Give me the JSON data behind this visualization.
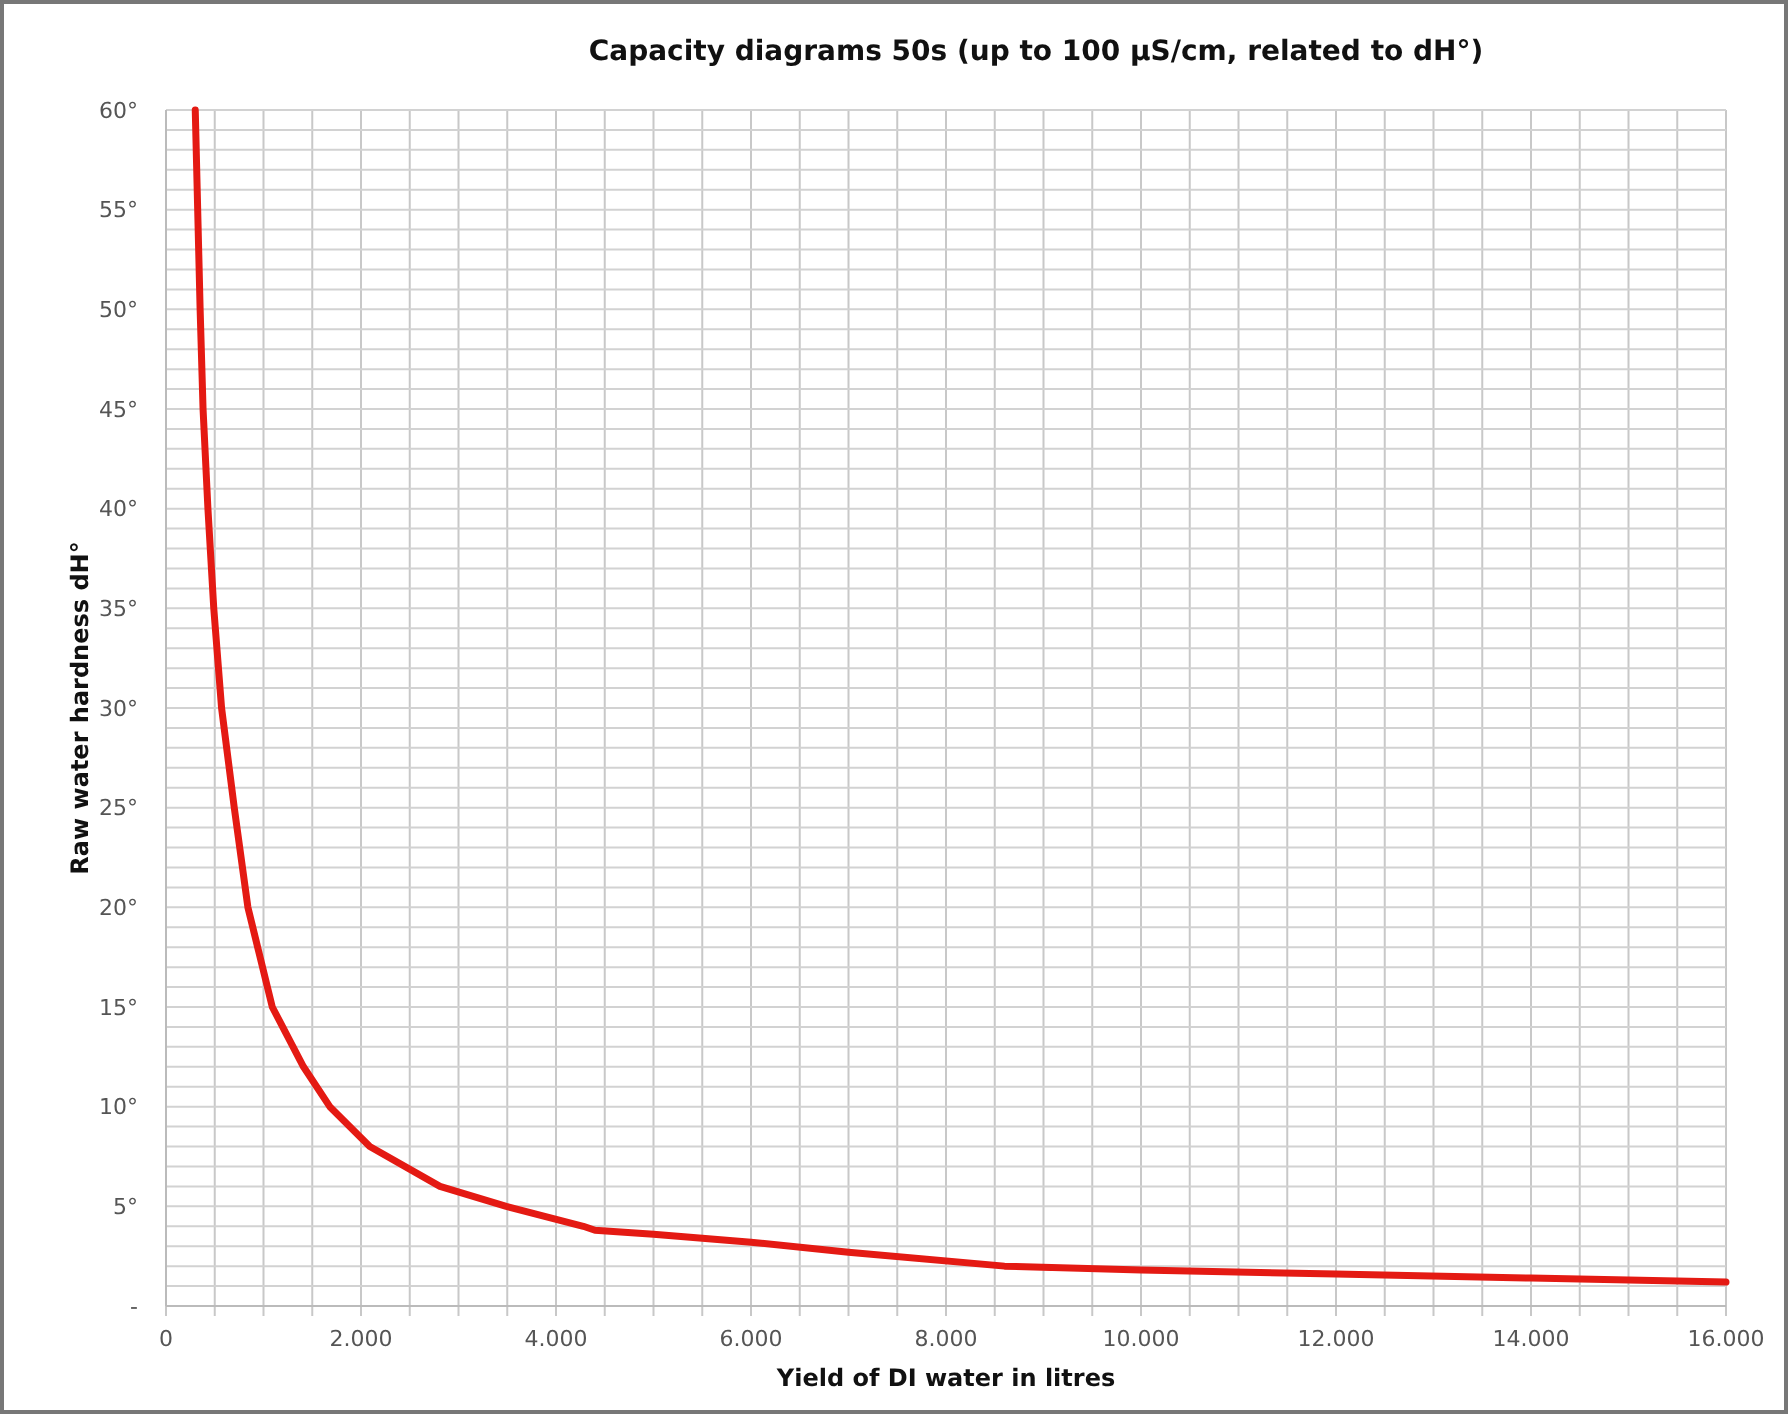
{
  "chart_data": {
    "type": "line",
    "title": "Capacity diagrams 50s (up to 100 µS/cm, related to dH°)",
    "xlabel": "Yield of DI water in litres",
    "ylabel": "Raw water hardness dH°",
    "x": [
      300,
      350,
      380,
      430,
      490,
      570,
      700,
      840,
      1090,
      1410,
      1680,
      2090,
      2810,
      3490,
      4280,
      4400,
      5000,
      6000,
      7000,
      8600,
      10000,
      12000,
      14000,
      16000
    ],
    "series": [
      {
        "color": "#e41a13",
        "values": [
          60,
          50,
          45,
          40,
          35,
          30,
          25,
          20,
          15,
          12,
          10,
          8,
          6,
          5,
          4,
          3.8,
          3.6,
          3.2,
          2.7,
          2.0,
          1.8,
          1.6,
          1.4,
          1.2
        ]
      }
    ],
    "xlim": [
      0,
      16000
    ],
    "ylim": [
      0,
      60
    ],
    "xticks": [
      0,
      {
        "value": 500,
        "label": null
      },
      {
        "value": 1000,
        "label": null
      },
      {
        "value": 1500,
        "label": null
      },
      {
        "value": 2000,
        "label": "2.000"
      },
      {
        "value": 2500,
        "label": null
      },
      {
        "value": 3000,
        "label": null
      },
      {
        "value": 3500,
        "label": null
      },
      {
        "value": 4000,
        "label": "4.000"
      },
      {
        "value": 4500,
        "label": null
      },
      {
        "value": 5000,
        "label": null
      },
      {
        "value": 5500,
        "label": null
      },
      {
        "value": 6000,
        "label": "6.000"
      },
      {
        "value": 6500,
        "label": null
      },
      {
        "value": 7000,
        "label": null
      },
      {
        "value": 7500,
        "label": null
      },
      {
        "value": 8000,
        "label": "8.000"
      },
      {
        "value": 8500,
        "label": null
      },
      {
        "value": 9000,
        "label": null
      },
      {
        "value": 9500,
        "label": null
      },
      {
        "value": 10000,
        "label": "10.000"
      },
      {
        "value": 10500,
        "label": null
      },
      {
        "value": 11000,
        "label": null
      },
      {
        "value": 11500,
        "label": null
      },
      {
        "value": 12000,
        "label": "12.000"
      },
      {
        "value": 12500,
        "label": null
      },
      {
        "value": 13000,
        "label": null
      },
      {
        "value": 13500,
        "label": null
      },
      {
        "value": 14000,
        "label": "14.000"
      },
      {
        "value": 14500,
        "label": null
      },
      {
        "value": 15000,
        "label": null
      },
      {
        "value": 15500,
        "label": null
      },
      {
        "value": 16000,
        "label": "16.000"
      }
    ],
    "yticks": [
      {
        "value": 0,
        "label": "-"
      },
      {
        "value": 1,
        "label": null
      },
      {
        "value": 2,
        "label": null
      },
      {
        "value": 3,
        "label": null
      },
      {
        "value": 4,
        "label": null
      },
      {
        "value": 5,
        "label": "5°"
      },
      {
        "value": 6,
        "label": null
      },
      {
        "value": 7,
        "label": null
      },
      {
        "value": 8,
        "label": null
      },
      {
        "value": 9,
        "label": null
      },
      {
        "value": 10,
        "label": "10°"
      },
      {
        "value": 11,
        "label": null
      },
      {
        "value": 12,
        "label": null
      },
      {
        "value": 13,
        "label": null
      },
      {
        "value": 14,
        "label": null
      },
      {
        "value": 15,
        "label": "15°"
      },
      {
        "value": 16,
        "label": null
      },
      {
        "value": 17,
        "label": null
      },
      {
        "value": 18,
        "label": null
      },
      {
        "value": 19,
        "label": null
      },
      {
        "value": 20,
        "label": "20°"
      },
      {
        "value": 21,
        "label": null
      },
      {
        "value": 22,
        "label": null
      },
      {
        "value": 23,
        "label": null
      },
      {
        "value": 24,
        "label": null
      },
      {
        "value": 25,
        "label": "25°"
      },
      {
        "value": 26,
        "label": null
      },
      {
        "value": 27,
        "label": null
      },
      {
        "value": 28,
        "label": null
      },
      {
        "value": 29,
        "label": null
      },
      {
        "value": 30,
        "label": "30°"
      },
      {
        "value": 31,
        "label": null
      },
      {
        "value": 32,
        "label": null
      },
      {
        "value": 33,
        "label": null
      },
      {
        "value": 34,
        "label": null
      },
      {
        "value": 35,
        "label": "35°"
      },
      {
        "value": 36,
        "label": null
      },
      {
        "value": 37,
        "label": null
      },
      {
        "value": 38,
        "label": null
      },
      {
        "value": 39,
        "label": null
      },
      {
        "value": 40,
        "label": "40°"
      },
      {
        "value": 41,
        "label": null
      },
      {
        "value": 42,
        "label": null
      },
      {
        "value": 43,
        "label": null
      },
      {
        "value": 44,
        "label": null
      },
      {
        "value": 45,
        "label": "45°"
      },
      {
        "value": 46,
        "label": null
      },
      {
        "value": 47,
        "label": null
      },
      {
        "value": 48,
        "label": null
      },
      {
        "value": 49,
        "label": null
      },
      {
        "value": 50,
        "label": "50°"
      },
      {
        "value": 51,
        "label": null
      },
      {
        "value": 52,
        "label": null
      },
      {
        "value": 53,
        "label": null
      },
      {
        "value": 54,
        "label": null
      },
      {
        "value": 55,
        "label": "55°"
      },
      {
        "value": 56,
        "label": null
      },
      {
        "value": 57,
        "label": null
      },
      {
        "value": 58,
        "label": null
      },
      {
        "value": 59,
        "label": null
      },
      {
        "value": 60,
        "label": "60°"
      }
    ],
    "grid": true,
    "marker": "none",
    "line_style": "solid"
  }
}
